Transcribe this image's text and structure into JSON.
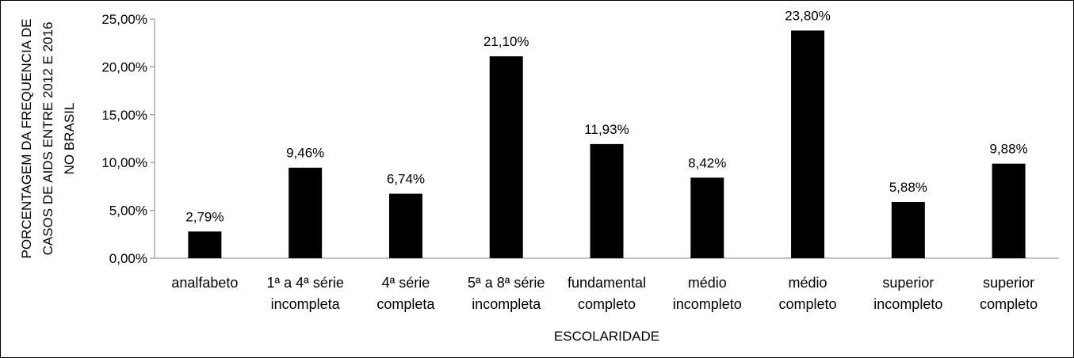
{
  "chart_data": {
    "type": "bar",
    "title": "",
    "xlabel": "ESCOLARIDADE",
    "ylabel_lines": [
      "PORCENTAGEM DA FREQUENCIA DE",
      "CASOS DE AIDS ENTRE 2012 E 2016",
      "NO BRASIL"
    ],
    "ylim": [
      0,
      25
    ],
    "yticks": [
      0,
      5,
      10,
      15,
      20,
      25
    ],
    "ytick_labels": [
      "0,00%",
      "5,00%",
      "10,00%",
      "15,00%",
      "20,00%",
      "25,00%"
    ],
    "categories": [
      [
        "analfabeto"
      ],
      [
        "1ª a 4ª série",
        "incompleta"
      ],
      [
        "4ª série",
        "completa"
      ],
      [
        "5ª a 8ª série",
        "incompleta"
      ],
      [
        "fundamental",
        "completo"
      ],
      [
        "médio",
        "incompleto"
      ],
      [
        "médio",
        "completo"
      ],
      [
        "superior",
        "incompleto"
      ],
      [
        "superior",
        "completo"
      ]
    ],
    "values": [
      2.79,
      9.46,
      6.74,
      21.1,
      11.93,
      8.42,
      23.8,
      5.88,
      9.88
    ],
    "value_labels": [
      "2,79%",
      "9,46%",
      "6,74%",
      "21,10%",
      "11,93%",
      "8,42%",
      "23,80%",
      "5,88%",
      "9,88%"
    ],
    "bar_color": "#000000",
    "grid": false,
    "legend": "none"
  }
}
